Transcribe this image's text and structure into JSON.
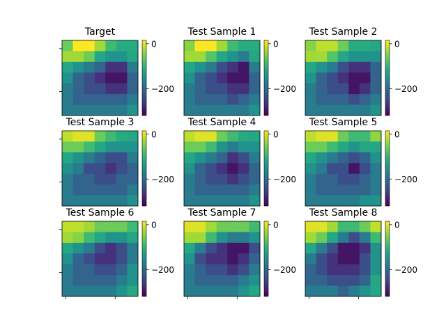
{
  "chart_data": [
    {
      "type": "heatmap",
      "title": "Target",
      "colorbar": {
        "ticks": [
          0,
          -200
        ],
        "range": [
          -320,
          15
        ]
      },
      "values": [
        [
          -60,
          15,
          15,
          -30,
          -90,
          -110,
          -110
        ],
        [
          -30,
          -30,
          -60,
          -120,
          -150,
          -150,
          -120
        ],
        [
          -120,
          -150,
          -180,
          -210,
          -270,
          -270,
          -180
        ],
        [
          -150,
          -210,
          -240,
          -270,
          -300,
          -300,
          -210
        ],
        [
          -180,
          -210,
          -240,
          -240,
          -270,
          -270,
          -210
        ],
        [
          -180,
          -210,
          -210,
          -210,
          -210,
          -210,
          -180
        ],
        [
          -180,
          -180,
          -180,
          -180,
          -180,
          -180,
          -150
        ]
      ]
    },
    {
      "type": "heatmap",
      "title": "Test Sample 1",
      "colorbar": {
        "ticks": [
          0,
          -200
        ],
        "range": [
          -320,
          15
        ]
      },
      "values": [
        [
          -45,
          15,
          15,
          -30,
          -90,
          -110,
          -110
        ],
        [
          -30,
          -30,
          -75,
          -120,
          -150,
          -180,
          -120
        ],
        [
          -120,
          -150,
          -180,
          -240,
          -270,
          -300,
          -180
        ],
        [
          -150,
          -210,
          -240,
          -270,
          -300,
          -300,
          -210
        ],
        [
          -180,
          -210,
          -240,
          -240,
          -270,
          -270,
          -210
        ],
        [
          -180,
          -210,
          -210,
          -210,
          -240,
          -210,
          -180
        ],
        [
          -180,
          -180,
          -180,
          -180,
          -180,
          -180,
          -150
        ]
      ]
    },
    {
      "type": "heatmap",
      "title": "Test Sample 2",
      "colorbar": {
        "ticks": [
          0,
          -200
        ],
        "range": [
          -320,
          15
        ]
      },
      "values": [
        [
          -45,
          -15,
          -15,
          -60,
          -110,
          -110,
          -120
        ],
        [
          -30,
          -30,
          -75,
          -120,
          -150,
          -150,
          -150
        ],
        [
          -120,
          -150,
          -180,
          -240,
          -270,
          -270,
          -210
        ],
        [
          -150,
          -210,
          -240,
          -270,
          -300,
          -300,
          -210
        ],
        [
          -180,
          -210,
          -240,
          -240,
          -300,
          -270,
          -210
        ],
        [
          -180,
          -210,
          -210,
          -210,
          -240,
          -210,
          -180
        ],
        [
          -180,
          -180,
          -180,
          -180,
          -180,
          -180,
          -150
        ]
      ]
    },
    {
      "type": "heatmap",
      "title": "Test Sample 3",
      "colorbar": {
        "ticks": [
          0,
          -200
        ],
        "range": [
          -320,
          15
        ]
      },
      "values": [
        [
          -15,
          0,
          0,
          -60,
          -90,
          -110,
          -120
        ],
        [
          -60,
          -60,
          -90,
          -120,
          -150,
          -150,
          -150
        ],
        [
          -120,
          -150,
          -180,
          -210,
          -240,
          -240,
          -180
        ],
        [
          -150,
          -180,
          -240,
          -240,
          -270,
          -240,
          -210
        ],
        [
          -180,
          -210,
          -210,
          -240,
          -240,
          -210,
          -210
        ],
        [
          -180,
          -210,
          -210,
          -210,
          -210,
          -210,
          -180
        ],
        [
          -180,
          -180,
          -180,
          -180,
          -180,
          -180,
          -150
        ]
      ]
    },
    {
      "type": "heatmap",
      "title": "Test Sample 4",
      "colorbar": {
        "ticks": [
          0,
          -200
        ],
        "range": [
          -320,
          15
        ]
      },
      "values": [
        [
          -15,
          0,
          0,
          -60,
          -90,
          -110,
          -120
        ],
        [
          -60,
          -60,
          -90,
          -150,
          -180,
          -150,
          -150
        ],
        [
          -120,
          -150,
          -180,
          -210,
          -270,
          -240,
          -180
        ],
        [
          -150,
          -210,
          -240,
          -270,
          -300,
          -270,
          -210
        ],
        [
          -180,
          -210,
          -240,
          -240,
          -270,
          -240,
          -210
        ],
        [
          -180,
          -210,
          -210,
          -210,
          -210,
          -210,
          -180
        ],
        [
          -180,
          -180,
          -180,
          -180,
          -180,
          -180,
          -150
        ]
      ]
    },
    {
      "type": "heatmap",
      "title": "Test Sample 5",
      "colorbar": {
        "ticks": [
          0,
          -200
        ],
        "range": [
          -320,
          15
        ]
      },
      "values": [
        [
          -15,
          0,
          0,
          -60,
          -90,
          -90,
          -40
        ],
        [
          -60,
          -60,
          -90,
          -120,
          -150,
          -120,
          -120
        ],
        [
          -120,
          -150,
          -180,
          -210,
          -240,
          -210,
          -150
        ],
        [
          -150,
          -180,
          -240,
          -240,
          -300,
          -240,
          -180
        ],
        [
          -180,
          -210,
          -210,
          -240,
          -240,
          -210,
          -180
        ],
        [
          -180,
          -210,
          -210,
          -210,
          -210,
          -210,
          -180
        ],
        [
          -180,
          -180,
          -180,
          -180,
          -180,
          -150,
          -150
        ]
      ]
    },
    {
      "type": "heatmap",
      "title": "Test Sample 6",
      "colorbar": {
        "ticks": [
          0,
          -200
        ],
        "range": [
          -320,
          15
        ]
      },
      "values": [
        [
          -15,
          -15,
          -30,
          -60,
          -60,
          -60,
          -90
        ],
        [
          -30,
          -45,
          -90,
          -120,
          -150,
          -150,
          -120
        ],
        [
          -120,
          -150,
          -180,
          -240,
          -270,
          -240,
          -180
        ],
        [
          -150,
          -210,
          -240,
          -270,
          -270,
          -240,
          -180
        ],
        [
          -180,
          -210,
          -210,
          -240,
          -240,
          -210,
          -150
        ],
        [
          -180,
          -210,
          -210,
          -210,
          -210,
          -180,
          -150
        ],
        [
          -180,
          -180,
          -180,
          -180,
          -180,
          -150,
          -120
        ]
      ]
    },
    {
      "type": "heatmap",
      "title": "Test Sample 7",
      "colorbar": {
        "ticks": [
          0,
          -200
        ],
        "range": [
          -320,
          15
        ]
      },
      "values": [
        [
          0,
          0,
          -30,
          -60,
          -60,
          -60,
          -90
        ],
        [
          -30,
          -30,
          -90,
          -150,
          -180,
          -180,
          -150
        ],
        [
          -120,
          -180,
          -240,
          -270,
          -300,
          -300,
          -240
        ],
        [
          -150,
          -240,
          -270,
          -270,
          -300,
          -270,
          -210
        ],
        [
          -180,
          -210,
          -240,
          -240,
          -270,
          -240,
          -180
        ],
        [
          -180,
          -210,
          -210,
          -210,
          -210,
          -180,
          -150
        ],
        [
          -180,
          -180,
          -180,
          -180,
          -180,
          -150,
          -120
        ]
      ]
    },
    {
      "type": "heatmap",
      "title": "Test Sample 8",
      "colorbar": {
        "ticks": [
          0,
          -200
        ],
        "range": [
          -320,
          15
        ]
      },
      "values": [
        [
          0,
          0,
          -30,
          -90,
          -90,
          -60,
          -15
        ],
        [
          -30,
          -60,
          -120,
          -180,
          -240,
          -180,
          -90
        ],
        [
          -120,
          -180,
          -240,
          -300,
          -300,
          -270,
          -150
        ],
        [
          -180,
          -240,
          -270,
          -300,
          -300,
          -240,
          -150
        ],
        [
          -210,
          -240,
          -270,
          -270,
          -270,
          -240,
          -150
        ],
        [
          -210,
          -210,
          -240,
          -240,
          -240,
          -210,
          -120
        ],
        [
          -180,
          -180,
          -180,
          -210,
          -180,
          -150,
          -120
        ]
      ]
    }
  ]
}
